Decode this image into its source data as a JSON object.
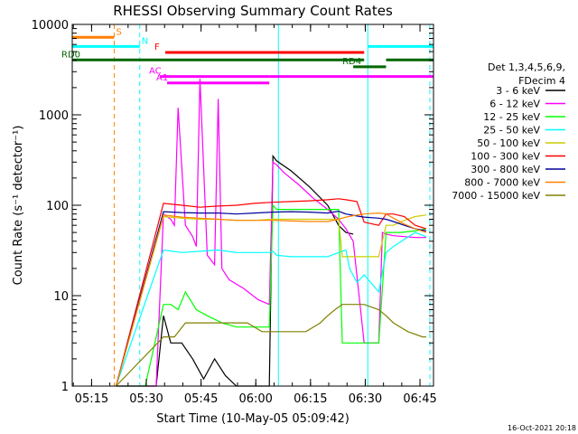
{
  "chart_data": {
    "type": "line",
    "title": "RHESSI Observing Summary Count Rates",
    "xlabel": "Start Time (10-May-05 05:09:42)",
    "ylabel": "Count Rate (s⁻¹ detector⁻¹)",
    "yscale": "log",
    "ylim": [
      1,
      10000
    ],
    "xlim_minutes": [
      0,
      99
    ],
    "x_tick_labels": [
      "05:15",
      "05:30",
      "05:45",
      "06:00",
      "06:15",
      "06:30",
      "06:45"
    ],
    "y_tick_labels": [
      "1",
      "10",
      "100",
      "1000",
      "10000"
    ],
    "legend_header": [
      "Det 1,3,4,5,6,9,",
      "FDecim 4"
    ],
    "footer": "16-Oct-2021 20:18",
    "series": [
      {
        "name": "3 - 6 keV",
        "color": "#000000",
        "x": [
          12,
          23,
          25,
          27,
          30,
          33,
          36,
          39,
          42,
          45,
          54,
          55,
          56,
          60,
          65,
          70,
          73,
          75,
          77
        ],
        "y": [
          1,
          1,
          6,
          3,
          3,
          2,
          1.2,
          2,
          1.3,
          1,
          1,
          350,
          310,
          240,
          160,
          100,
          60,
          50,
          48
        ]
      },
      {
        "name": "6 - 12 keV",
        "color": "#ff00ff",
        "x": [
          12,
          23,
          25,
          27,
          28,
          29,
          31,
          33,
          34,
          35,
          37,
          39,
          40,
          41,
          43,
          47,
          51,
          54,
          55,
          56,
          58,
          62,
          66,
          70,
          73,
          75,
          77,
          80,
          84,
          85,
          86,
          88,
          91,
          94,
          97
        ],
        "y": [
          1,
          1,
          80,
          70,
          60,
          1200,
          60,
          45,
          35,
          2500,
          28,
          22,
          1500,
          20,
          15,
          12,
          9,
          8,
          300,
          280,
          230,
          170,
          120,
          90,
          70,
          55,
          40,
          3,
          3,
          50,
          48,
          46,
          45,
          44,
          44
        ]
      },
      {
        "name": "12 - 25 keV",
        "color": "#00ff00",
        "x": [
          12,
          20,
          25,
          27,
          29,
          31,
          34,
          37,
          41,
          45,
          50,
          54,
          55,
          56,
          60,
          65,
          70,
          73,
          74,
          78,
          80,
          84,
          86,
          90,
          94,
          97
        ],
        "y": [
          1,
          1,
          8,
          8,
          7,
          11,
          7,
          6,
          5,
          4.5,
          4.5,
          4.5,
          100,
          90,
          90,
          90,
          90,
          90,
          3,
          3,
          3,
          3,
          50,
          50,
          52,
          55
        ]
      },
      {
        "name": "25 - 50 keV",
        "color": "#00ffff",
        "x": [
          12,
          25,
          30,
          35,
          40,
          45,
          50,
          54,
          55,
          56,
          60,
          65,
          70,
          73,
          75,
          76,
          78,
          80,
          84,
          86,
          88,
          91,
          94,
          97
        ],
        "y": [
          1,
          32,
          30,
          31,
          32,
          30,
          30,
          30,
          31,
          28,
          27,
          27,
          27,
          30,
          32,
          20,
          14,
          17,
          11,
          30,
          35,
          42,
          50,
          45
        ]
      },
      {
        "name": "50 - 100 keV",
        "color": "#cccc00",
        "x": [
          12,
          25,
          30,
          35,
          40,
          45,
          50,
          55,
          60,
          65,
          70,
          73,
          74,
          78,
          80,
          84,
          86,
          88,
          91,
          94,
          97
        ],
        "y": [
          1,
          75,
          72,
          70,
          70,
          68,
          68,
          70,
          70,
          70,
          70,
          70,
          27,
          27,
          27,
          27,
          60,
          60,
          68,
          75,
          78
        ]
      },
      {
        "name": "100 - 300 keV",
        "color": "#ff0000",
        "x": [
          12,
          25,
          30,
          35,
          40,
          45,
          50,
          55,
          60,
          65,
          70,
          73,
          75,
          78,
          80,
          84,
          86,
          88,
          91,
          94,
          97
        ],
        "y": [
          1,
          105,
          100,
          95,
          98,
          100,
          105,
          108,
          110,
          112,
          115,
          118,
          115,
          110,
          65,
          60,
          80,
          80,
          75,
          60,
          55
        ]
      },
      {
        "name": "300 - 800 keV",
        "color": "#000099",
        "x": [
          12,
          25,
          30,
          35,
          40,
          45,
          50,
          55,
          60,
          65,
          70,
          73,
          75,
          78,
          80,
          84,
          86,
          88,
          91,
          94,
          97
        ],
        "y": [
          1,
          85,
          83,
          82,
          82,
          80,
          82,
          84,
          85,
          84,
          82,
          86,
          80,
          76,
          74,
          72,
          70,
          66,
          60,
          55,
          52
        ]
      },
      {
        "name": "800 - 7000 keV",
        "color": "#ff8000",
        "x": [
          12,
          25,
          30,
          35,
          40,
          45,
          50,
          55,
          60,
          65,
          70,
          73,
          75,
          78,
          80,
          84,
          86,
          88,
          91,
          94,
          97
        ],
        "y": [
          1,
          78,
          74,
          72,
          70,
          68,
          68,
          68,
          67,
          66,
          66,
          70,
          74,
          78,
          80,
          82,
          80,
          72,
          62,
          55,
          50
        ]
      },
      {
        "name": "7000 - 15000 keV",
        "color": "#808000",
        "x": [
          12,
          25,
          28,
          31,
          34,
          37,
          40,
          44,
          48,
          52,
          56,
          60,
          64,
          68,
          70,
          72,
          74,
          76,
          78,
          80,
          84,
          86,
          88,
          92,
          96,
          97
        ],
        "y": [
          1,
          3.5,
          3.5,
          5,
          5,
          5,
          5,
          5,
          5,
          4,
          4,
          4,
          4,
          5,
          6,
          7,
          8,
          8,
          8,
          8,
          7,
          6,
          5,
          4,
          3.5,
          3.5
        ]
      }
    ],
    "vertical_markers": [
      {
        "x": 0,
        "color": "#00ffff",
        "style": "solid"
      },
      {
        "x": 11.5,
        "color": "#ff8000",
        "style": "dashed"
      },
      {
        "x": 18.5,
        "color": "#00ffff",
        "style": "dashed"
      },
      {
        "x": 56.5,
        "color": "#00ffff",
        "style": "solid"
      },
      {
        "x": 81,
        "color": "#00ffff",
        "style": "solid"
      },
      {
        "x": 98,
        "color": "#00ffff",
        "style": "dashed"
      }
    ],
    "flag_bars": [
      {
        "label": "S",
        "color": "#ff8000",
        "y": 7200,
        "segments": [
          [
            0,
            11.5
          ]
        ]
      },
      {
        "label": "N",
        "color": "#00ffff",
        "y": 5700,
        "segments": [
          [
            0,
            18.5
          ],
          [
            81,
            99
          ]
        ]
      },
      {
        "label": "F",
        "color": "#ff0000",
        "y": 4900,
        "segments": [
          [
            25.5,
            80
          ]
        ]
      },
      {
        "label": "RD0",
        "color": "#006600",
        "y": 4050,
        "segments": [
          [
            0,
            80
          ],
          [
            86,
            99
          ]
        ]
      },
      {
        "label": "RD4",
        "color": "#006600",
        "y": 3400,
        "segments": [
          [
            77,
            86
          ]
        ]
      },
      {
        "label": "AC",
        "color": "#ff00ff",
        "y": 2650,
        "segments": [
          [
            24,
            54
          ],
          [
            54,
            99
          ]
        ]
      },
      {
        "label": "A1",
        "color": "#ff00ff",
        "y": 2250,
        "segments": [
          [
            26,
            54
          ]
        ]
      }
    ]
  }
}
